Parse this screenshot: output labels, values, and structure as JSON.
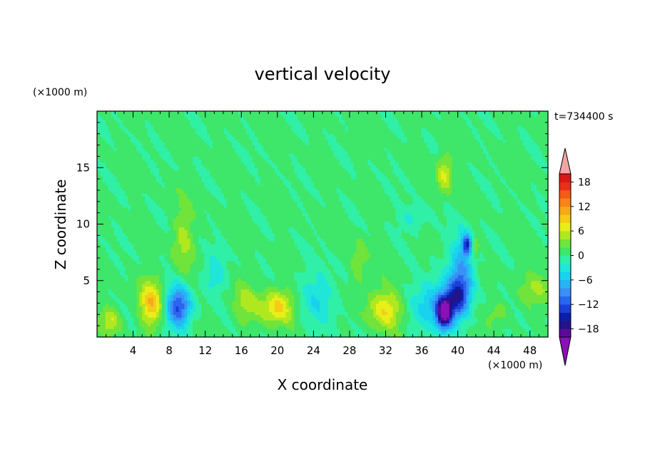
{
  "chart_data": {
    "type": "heatmap",
    "title": "vertical velocity",
    "time_label": "t=734400 s",
    "xlabel": "X coordinate",
    "ylabel": "Z coordinate",
    "x_unit": "(×1000 m)",
    "y_unit": "(×1000 m)",
    "xlim": [
      0,
      50
    ],
    "ylim": [
      0,
      20
    ],
    "x_ticks": [
      4,
      8,
      12,
      16,
      20,
      24,
      28,
      32,
      36,
      40,
      44,
      48
    ],
    "y_ticks": [
      5,
      10,
      15
    ],
    "colorbar": {
      "levels": [
        -20,
        -18,
        -16,
        -14,
        -12,
        -10,
        -8,
        -6,
        -4,
        -2,
        0,
        2,
        4,
        6,
        8,
        10,
        12,
        14,
        16,
        18,
        20
      ],
      "tick_labels": [
        18,
        12,
        6,
        0,
        -6,
        -12,
        -18
      ],
      "colors": [
        "#5a0a9a",
        "#24128a",
        "#0c1ea8",
        "#1a40d8",
        "#2a66f0",
        "#3a90f6",
        "#28b4f4",
        "#18d2ee",
        "#20e6da",
        "#30f0a8",
        "#3ee66a",
        "#70e43a",
        "#b0e820",
        "#e8ee18",
        "#f4cc18",
        "#f8a818",
        "#f88418",
        "#f45a18",
        "#e83018",
        "#d81818"
      ],
      "over_color": "#f4a4a4",
      "under_color": "#8a10b8"
    },
    "features": [
      {
        "x": 6,
        "z": 3,
        "peak": 9,
        "sx": 0.9,
        "sz": 1.4
      },
      {
        "x": 1.5,
        "z": 1.5,
        "peak": 5,
        "sx": 0.8,
        "sz": 0.8
      },
      {
        "x": 9,
        "z": 2.7,
        "peak": -13,
        "sx": 1.0,
        "sz": 1.3
      },
      {
        "x": 9.5,
        "z": 8.5,
        "peak": 4,
        "sx": 0.8,
        "sz": 2.2
      },
      {
        "x": 13,
        "z": 5.5,
        "peak": -4,
        "sx": 0.9,
        "sz": 1.2
      },
      {
        "x": 16.5,
        "z": 3,
        "peak": 4,
        "sx": 1.0,
        "sz": 1.2
      },
      {
        "x": 20,
        "z": 2.7,
        "peak": 8,
        "sx": 1.3,
        "sz": 1.1
      },
      {
        "x": 24.5,
        "z": 3.5,
        "peak": -4,
        "sx": 1.6,
        "sz": 1.8
      },
      {
        "x": 29,
        "z": 6.5,
        "peak": 3,
        "sx": 0.7,
        "sz": 1.6
      },
      {
        "x": 32,
        "z": 2.5,
        "peak": 7,
        "sx": 1.4,
        "sz": 1.2
      },
      {
        "x": 38.5,
        "z": 2.2,
        "peak": -20,
        "sx": 0.6,
        "sz": 1.0
      },
      {
        "x": 37.5,
        "z": 3,
        "peak": -7,
        "sx": 1.8,
        "sz": 1.5
      },
      {
        "x": 40.5,
        "z": 6,
        "peak": -8,
        "sx": 1.0,
        "sz": 2.2
      },
      {
        "x": 41,
        "z": 8.2,
        "peak": -12,
        "sx": 0.35,
        "sz": 0.6
      },
      {
        "x": 40,
        "z": 3.5,
        "peak": -10,
        "sx": 0.8,
        "sz": 1.2
      },
      {
        "x": 38.5,
        "z": 14.5,
        "peak": 6,
        "sx": 0.6,
        "sz": 1.2
      },
      {
        "x": 42,
        "z": 8,
        "peak": 5,
        "sx": 0.3,
        "sz": 0.6
      },
      {
        "x": 44.5,
        "z": 2.2,
        "peak": 3,
        "sx": 0.8,
        "sz": 0.7
      },
      {
        "x": 49,
        "z": 4.5,
        "peak": 4,
        "sx": 1.2,
        "sz": 1.0
      },
      {
        "x": 35,
        "z": 10.5,
        "peak": -3,
        "sx": 1.2,
        "sz": 0.8
      }
    ]
  }
}
